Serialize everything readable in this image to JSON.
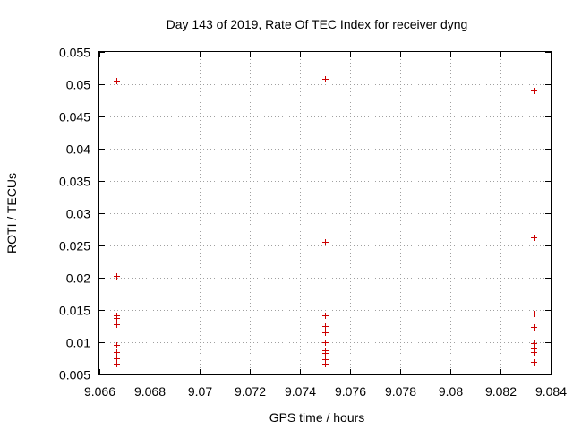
{
  "chart_data": {
    "type": "scatter",
    "title": "Day 143 of 2019, Rate Of TEC Index for receiver dyng",
    "xlabel": "GPS time / hours",
    "ylabel": "ROTI / TECUs",
    "xlim": [
      9.066,
      9.084
    ],
    "ylim": [
      0.005,
      0.055
    ],
    "xticks": [
      9.066,
      9.068,
      9.07,
      9.072,
      9.074,
      9.076,
      9.078,
      9.08,
      9.082,
      9.084
    ],
    "xtick_labels": [
      "9.066",
      "9.068",
      "9.07",
      "9.072",
      "9.074",
      "9.076",
      "9.078",
      "9.08",
      "9.082",
      "9.084"
    ],
    "yticks": [
      0.005,
      0.01,
      0.015,
      0.02,
      0.025,
      0.03,
      0.035,
      0.04,
      0.045,
      0.05,
      0.055
    ],
    "ytick_labels": [
      "0.005",
      "0.01",
      "0.015",
      "0.02",
      "0.025",
      "0.03",
      "0.035",
      "0.04",
      "0.045",
      "0.05",
      "0.055"
    ],
    "grid": true,
    "marker": "+",
    "color": "#cc0000",
    "series": [
      {
        "name": "ROTI",
        "points": [
          {
            "x": 9.06667,
            "y": 0.0506
          },
          {
            "x": 9.06667,
            "y": 0.0203
          },
          {
            "x": 9.06667,
            "y": 0.0141
          },
          {
            "x": 9.06667,
            "y": 0.0138
          },
          {
            "x": 9.06667,
            "y": 0.0128
          },
          {
            "x": 9.06667,
            "y": 0.0096
          },
          {
            "x": 9.06667,
            "y": 0.0085
          },
          {
            "x": 9.06667,
            "y": 0.0075
          },
          {
            "x": 9.06667,
            "y": 0.0067
          },
          {
            "x": 9.075,
            "y": 0.0508
          },
          {
            "x": 9.075,
            "y": 0.0255
          },
          {
            "x": 9.075,
            "y": 0.0142
          },
          {
            "x": 9.075,
            "y": 0.0125
          },
          {
            "x": 9.075,
            "y": 0.0115
          },
          {
            "x": 9.075,
            "y": 0.01
          },
          {
            "x": 9.075,
            "y": 0.0088
          },
          {
            "x": 9.075,
            "y": 0.0084
          },
          {
            "x": 9.075,
            "y": 0.0074
          },
          {
            "x": 9.075,
            "y": 0.0067
          },
          {
            "x": 9.08333,
            "y": 0.049
          },
          {
            "x": 9.08333,
            "y": 0.0262
          },
          {
            "x": 9.08333,
            "y": 0.0144
          },
          {
            "x": 9.08333,
            "y": 0.0123
          },
          {
            "x": 9.08333,
            "y": 0.0098
          },
          {
            "x": 9.08333,
            "y": 0.009
          },
          {
            "x": 9.08333,
            "y": 0.0085
          },
          {
            "x": 9.08333,
            "y": 0.007
          }
        ]
      }
    ]
  }
}
